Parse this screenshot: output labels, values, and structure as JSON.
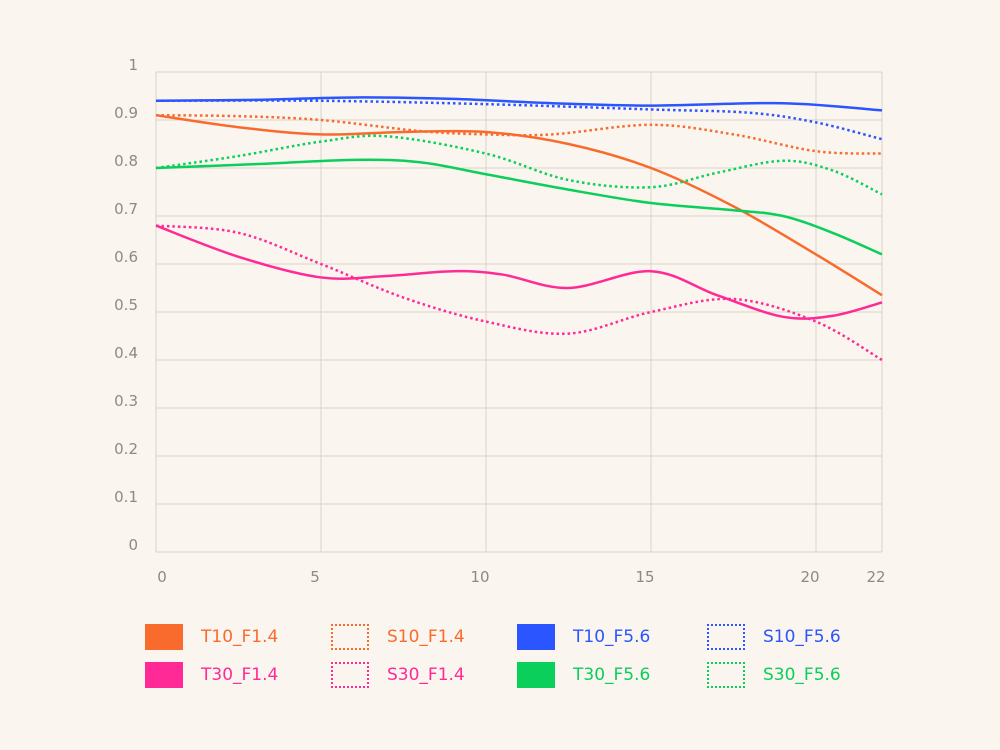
{
  "chart_data": {
    "type": "line",
    "title": "",
    "xlabel": "",
    "ylabel": "",
    "xlim": [
      0,
      22
    ],
    "ylim": [
      0,
      1
    ],
    "grid": true,
    "x_ticks": [
      0,
      5,
      10,
      15,
      20,
      22
    ],
    "y_ticks": [
      0,
      0.1,
      0.2,
      0.3,
      0.4,
      0.5,
      0.6,
      0.7,
      0.8,
      0.9,
      1
    ],
    "x_tick_labels": [
      "0",
      "5",
      "10",
      "15",
      "20",
      "22"
    ],
    "y_tick_labels": [
      "0",
      "0.1",
      "0.2",
      "0.3",
      "0.4",
      "0.5",
      "0.6",
      "0.7",
      "0.8",
      "0.9",
      "1"
    ],
    "legend_position": "bottom",
    "series": [
      {
        "name": "T10_F1.4",
        "color": "#f96b2c",
        "style": "solid",
        "x": [
          0,
          2.5,
          5,
          7.5,
          10,
          12.5,
          15,
          17.5,
          20,
          22
        ],
        "y": [
          0.91,
          0.885,
          0.87,
          0.875,
          0.875,
          0.85,
          0.8,
          0.72,
          0.62,
          0.535
        ]
      },
      {
        "name": "S10_F1.4",
        "color": "#f96b2c",
        "style": "dotted",
        "x": [
          0,
          2.5,
          5,
          8,
          10,
          12,
          15,
          17.5,
          20,
          22
        ],
        "y": [
          0.91,
          0.908,
          0.9,
          0.877,
          0.87,
          0.87,
          0.89,
          0.87,
          0.835,
          0.83
        ]
      },
      {
        "name": "T10_F5.6",
        "color": "#2b55ff",
        "style": "solid",
        "x": [
          0,
          3,
          6,
          9,
          12,
          15,
          19,
          22
        ],
        "y": [
          0.94,
          0.942,
          0.947,
          0.944,
          0.935,
          0.93,
          0.935,
          0.92
        ]
      },
      {
        "name": "S10_F5.6",
        "color": "#2b55ff",
        "style": "dotted",
        "x": [
          0,
          5,
          10,
          15,
          18,
          20,
          22
        ],
        "y": [
          0.94,
          0.94,
          0.933,
          0.922,
          0.915,
          0.895,
          0.86
        ]
      },
      {
        "name": "T30_F1.4",
        "color": "#ff2a96",
        "style": "solid",
        "x": [
          0,
          2.5,
          5,
          7,
          9,
          10.5,
          12.5,
          15,
          17,
          19,
          20.5,
          22
        ],
        "y": [
          0.68,
          0.615,
          0.572,
          0.575,
          0.585,
          0.578,
          0.55,
          0.585,
          0.535,
          0.49,
          0.492,
          0.52
        ]
      },
      {
        "name": "S30_F1.4",
        "color": "#ff2a96",
        "style": "dotted",
        "x": [
          0,
          2.5,
          5,
          7.5,
          10,
          12.5,
          15,
          17.5,
          20,
          22
        ],
        "y": [
          0.68,
          0.665,
          0.6,
          0.53,
          0.48,
          0.455,
          0.5,
          0.527,
          0.48,
          0.4
        ]
      },
      {
        "name": "T30_F5.6",
        "color": "#0acf5a",
        "style": "solid",
        "x": [
          0,
          3,
          6,
          8,
          10,
          12.5,
          15,
          17.5,
          19,
          20.5,
          22
        ],
        "y": [
          0.8,
          0.808,
          0.817,
          0.812,
          0.787,
          0.755,
          0.727,
          0.712,
          0.7,
          0.665,
          0.62
        ]
      },
      {
        "name": "S30_F5.6",
        "color": "#0acf5a",
        "style": "dotted",
        "x": [
          0,
          2.5,
          5,
          7,
          10,
          12.5,
          15,
          17,
          19,
          20.5,
          22
        ],
        "y": [
          0.8,
          0.825,
          0.855,
          0.866,
          0.83,
          0.775,
          0.76,
          0.79,
          0.815,
          0.795,
          0.745
        ]
      }
    ]
  }
}
